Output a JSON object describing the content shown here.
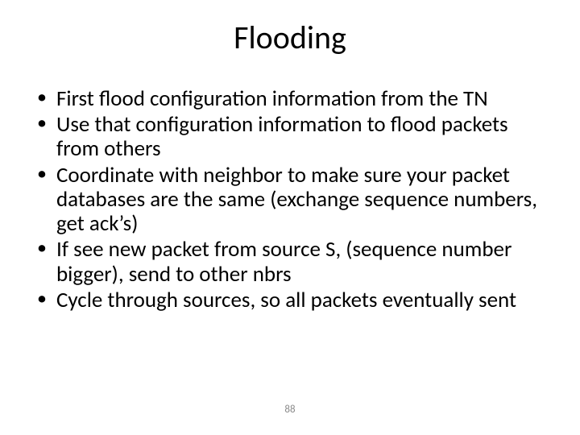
{
  "slide": {
    "title": "Flooding",
    "bullets": [
      "First flood configuration information from the TN",
      "Use that configuration information to flood packets from others",
      "Coordinate with neighbor to make sure your packet databases are the same (exchange sequence numbers, get ack’s)",
      "If see new packet from source S, (sequence number bigger), send to other nbrs",
      "Cycle through sources, so all packets eventually sent"
    ],
    "page_number": "88"
  },
  "style": {
    "background_color": "#ffffff",
    "title_color": "#000000",
    "title_fontsize": 40,
    "body_color": "#000000",
    "body_fontsize": 27,
    "bullet_marker": "•",
    "page_number_color": "#8a8a8a",
    "page_number_fontsize": 13,
    "font_family": "Calibri"
  }
}
